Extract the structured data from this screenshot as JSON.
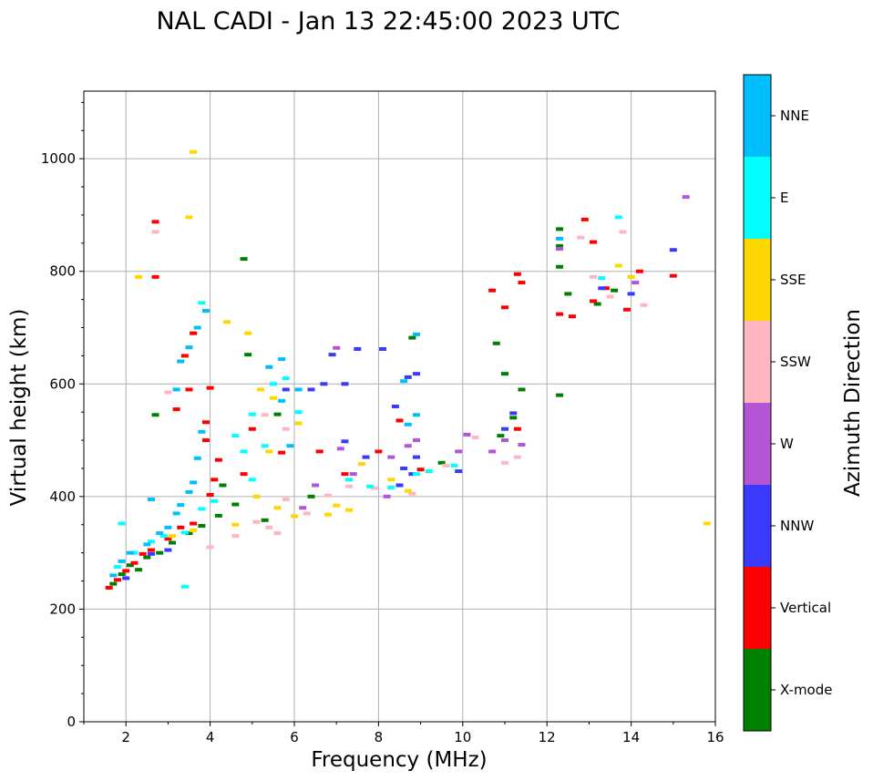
{
  "chart_data": {
    "type": "scatter",
    "title": "NAL CADI - Jan 13 22:45:00 2023 UTC",
    "xlabel": "Frequency (MHz)",
    "ylabel": "Virtual height (km)",
    "xlim": [
      1,
      16
    ],
    "ylim": [
      0,
      1120
    ],
    "xticks": [
      2,
      4,
      6,
      8,
      10,
      12,
      14,
      16
    ],
    "yticks": [
      0,
      200,
      400,
      600,
      800,
      1000
    ],
    "grid": true,
    "colorbar": {
      "label": "Azimuth Direction",
      "categories": [
        {
          "name": "X-mode",
          "color": "#008000"
        },
        {
          "name": "Vertical",
          "color": "#ff0000"
        },
        {
          "name": "NNW",
          "color": "#3a3aff"
        },
        {
          "name": "W",
          "color": "#b455d6"
        },
        {
          "name": "SSW",
          "color": "#ffb6c1"
        },
        {
          "name": "SSE",
          "color": "#ffd700"
        },
        {
          "name": "E",
          "color": "#00ffff"
        },
        {
          "name": "NNE",
          "color": "#00bfff"
        }
      ]
    },
    "series": [
      {
        "name": "X-mode",
        "points": [
          [
            1.7,
            245
          ],
          [
            1.9,
            262
          ],
          [
            2.1,
            278
          ],
          [
            2.3,
            270
          ],
          [
            2.5,
            292
          ],
          [
            2.8,
            300
          ],
          [
            3.1,
            318
          ],
          [
            3.5,
            335
          ],
          [
            3.8,
            348
          ],
          [
            4.2,
            366
          ],
          [
            4.6,
            386
          ],
          [
            4.3,
            420
          ],
          [
            4.9,
            652
          ],
          [
            5.3,
            358
          ],
          [
            5.6,
            546
          ],
          [
            6.4,
            400
          ],
          [
            8.8,
            682
          ],
          [
            9.5,
            460
          ],
          [
            10.8,
            672
          ],
          [
            11.0,
            618
          ],
          [
            11.2,
            540
          ],
          [
            11.4,
            590
          ],
          [
            12.3,
            808
          ],
          [
            12.3,
            845
          ],
          [
            12.3,
            875
          ],
          [
            12.5,
            760
          ],
          [
            13.2,
            742
          ],
          [
            13.6,
            766
          ],
          [
            12.3,
            580
          ],
          [
            10.9,
            508
          ],
          [
            2.7,
            545
          ],
          [
            4.8,
            822
          ]
        ]
      },
      {
        "name": "Vertical",
        "points": [
          [
            1.6,
            238
          ],
          [
            1.8,
            252
          ],
          [
            2.0,
            268
          ],
          [
            2.2,
            282
          ],
          [
            2.4,
            298
          ],
          [
            2.6,
            305
          ],
          [
            3.0,
            325
          ],
          [
            3.3,
            345
          ],
          [
            3.6,
            352
          ],
          [
            4.0,
            593
          ],
          [
            3.9,
            532
          ],
          [
            3.9,
            500
          ],
          [
            4.0,
            403
          ],
          [
            4.2,
            465
          ],
          [
            4.1,
            430
          ],
          [
            2.7,
            888
          ],
          [
            2.7,
            790
          ],
          [
            3.4,
            650
          ],
          [
            3.6,
            690
          ],
          [
            4.8,
            440
          ],
          [
            5.0,
            520
          ],
          [
            5.7,
            478
          ],
          [
            6.6,
            480
          ],
          [
            7.2,
            440
          ],
          [
            8.0,
            480
          ],
          [
            8.5,
            535
          ],
          [
            9.0,
            448
          ],
          [
            10.7,
            766
          ],
          [
            11.0,
            736
          ],
          [
            11.3,
            795
          ],
          [
            11.4,
            780
          ],
          [
            11.3,
            520
          ],
          [
            12.3,
            724
          ],
          [
            12.6,
            720
          ],
          [
            12.9,
            892
          ],
          [
            13.1,
            852
          ],
          [
            13.1,
            747
          ],
          [
            13.4,
            770
          ],
          [
            13.9,
            732
          ],
          [
            14.2,
            800
          ],
          [
            15.0,
            792
          ],
          [
            3.2,
            555
          ],
          [
            3.5,
            590
          ]
        ]
      },
      {
        "name": "NNW",
        "points": [
          [
            2.0,
            255
          ],
          [
            2.6,
            298
          ],
          [
            3.0,
            305
          ],
          [
            6.9,
            652
          ],
          [
            7.5,
            662
          ],
          [
            8.1,
            662
          ],
          [
            6.7,
            600
          ],
          [
            7.2,
            600
          ],
          [
            8.7,
            612
          ],
          [
            8.8,
            440
          ],
          [
            8.6,
            450
          ],
          [
            8.9,
            470
          ],
          [
            8.5,
            420
          ],
          [
            9.9,
            445
          ],
          [
            11.0,
            520
          ],
          [
            11.2,
            548
          ],
          [
            13.3,
            770
          ],
          [
            14.0,
            760
          ],
          [
            15.0,
            838
          ],
          [
            5.8,
            590
          ],
          [
            6.4,
            590
          ],
          [
            7.2,
            498
          ],
          [
            7.7,
            470
          ],
          [
            8.4,
            560
          ],
          [
            8.9,
            618
          ]
        ]
      },
      {
        "name": "W",
        "points": [
          [
            6.5,
            420
          ],
          [
            7.1,
            485
          ],
          [
            7.4,
            440
          ],
          [
            8.3,
            470
          ],
          [
            8.7,
            490
          ],
          [
            8.9,
            500
          ],
          [
            9.9,
            480
          ],
          [
            10.1,
            510
          ],
          [
            10.7,
            480
          ],
          [
            11.0,
            500
          ],
          [
            11.4,
            492
          ],
          [
            12.3,
            840
          ],
          [
            14.1,
            780
          ],
          [
            15.3,
            932
          ],
          [
            7.0,
            664
          ],
          [
            8.2,
            400
          ],
          [
            6.2,
            380
          ]
        ]
      },
      {
        "name": "SSW",
        "points": [
          [
            4.0,
            310
          ],
          [
            4.6,
            330
          ],
          [
            5.1,
            355
          ],
          [
            5.4,
            345
          ],
          [
            5.6,
            335
          ],
          [
            5.8,
            395
          ],
          [
            6.3,
            370
          ],
          [
            6.8,
            402
          ],
          [
            7.3,
            418
          ],
          [
            7.9,
            415
          ],
          [
            8.8,
            405
          ],
          [
            9.6,
            455
          ],
          [
            10.3,
            505
          ],
          [
            11.0,
            460
          ],
          [
            11.3,
            470
          ],
          [
            2.7,
            870
          ],
          [
            3.0,
            585
          ],
          [
            3.3,
            640
          ],
          [
            12.8,
            860
          ],
          [
            13.5,
            755
          ],
          [
            13.8,
            870
          ],
          [
            14.3,
            740
          ],
          [
            13.1,
            790
          ],
          [
            5.3,
            545
          ],
          [
            5.8,
            520
          ]
        ]
      },
      {
        "name": "SSE",
        "points": [
          [
            3.1,
            330
          ],
          [
            3.6,
            340
          ],
          [
            4.6,
            350
          ],
          [
            5.1,
            400
          ],
          [
            5.4,
            480
          ],
          [
            5.6,
            380
          ],
          [
            6.0,
            365
          ],
          [
            6.8,
            368
          ],
          [
            7.0,
            384
          ],
          [
            7.3,
            376
          ],
          [
            7.6,
            458
          ],
          [
            8.3,
            430
          ],
          [
            8.7,
            410
          ],
          [
            3.6,
            1012
          ],
          [
            3.5,
            896
          ],
          [
            4.4,
            710
          ],
          [
            5.2,
            590
          ],
          [
            5.5,
            575
          ],
          [
            6.1,
            530
          ],
          [
            13.7,
            810
          ],
          [
            14.0,
            790
          ],
          [
            15.8,
            352
          ],
          [
            2.3,
            790
          ],
          [
            4.9,
            690
          ]
        ]
      },
      {
        "name": "E",
        "points": [
          [
            1.8,
            275
          ],
          [
            2.2,
            300
          ],
          [
            2.6,
            320
          ],
          [
            2.9,
            330
          ],
          [
            3.4,
            336
          ],
          [
            3.8,
            378
          ],
          [
            4.1,
            392
          ],
          [
            4.6,
            508
          ],
          [
            5.0,
            430
          ],
          [
            5.3,
            490
          ],
          [
            5.5,
            600
          ],
          [
            5.8,
            610
          ],
          [
            6.1,
            550
          ],
          [
            7.3,
            430
          ],
          [
            7.8,
            418
          ],
          [
            8.3,
            416
          ],
          [
            8.9,
            440
          ],
          [
            9.2,
            445
          ],
          [
            9.8,
            455
          ],
          [
            13.3,
            788
          ],
          [
            13.7,
            896
          ],
          [
            3.8,
            744
          ],
          [
            4.8,
            480
          ],
          [
            5.0,
            546
          ],
          [
            3.4,
            240
          ],
          [
            1.9,
            352
          ]
        ]
      },
      {
        "name": "NNE",
        "points": [
          [
            1.7,
            260
          ],
          [
            1.9,
            285
          ],
          [
            2.1,
            300
          ],
          [
            2.5,
            315
          ],
          [
            2.8,
            335
          ],
          [
            3.0,
            345
          ],
          [
            3.2,
            370
          ],
          [
            3.3,
            385
          ],
          [
            3.5,
            408
          ],
          [
            3.6,
            425
          ],
          [
            3.7,
            468
          ],
          [
            3.8,
            515
          ],
          [
            3.3,
            640
          ],
          [
            3.5,
            665
          ],
          [
            3.7,
            700
          ],
          [
            3.9,
            730
          ],
          [
            5.7,
            644
          ],
          [
            5.4,
            630
          ],
          [
            6.1,
            590
          ],
          [
            8.6,
            605
          ],
          [
            8.9,
            688
          ],
          [
            8.9,
            545
          ],
          [
            8.7,
            528
          ],
          [
            2.6,
            395
          ],
          [
            3.2,
            590
          ],
          [
            5.7,
            570
          ],
          [
            5.9,
            490
          ],
          [
            12.3,
            858
          ]
        ]
      }
    ]
  }
}
